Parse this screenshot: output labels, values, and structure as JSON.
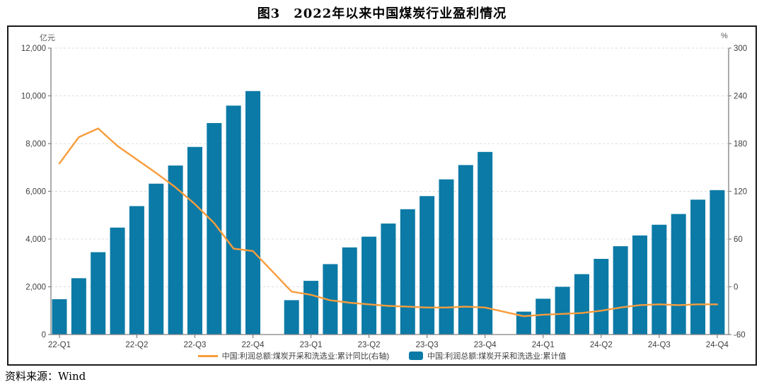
{
  "title": "图3　2022年以来中国煤炭行业盈利情况",
  "source": "资料来源：Wind",
  "chart_data": {
    "type": "bar+line",
    "title": "图3 2022年以来中国煤炭行业盈利情况",
    "categories": [
      "2022-02",
      "2022-03",
      "2022-04",
      "2022-05",
      "2022-06",
      "2022-07",
      "2022-08",
      "2022-09",
      "2022-10",
      "2022-11",
      "2022-12",
      "2023-02",
      "2023-03",
      "2023-04",
      "2023-05",
      "2023-06",
      "2023-07",
      "2023-08",
      "2023-09",
      "2023-10",
      "2023-11",
      "2023-12",
      "2024-02",
      "2024-03",
      "2024-04",
      "2024-05",
      "2024-06",
      "2024-07",
      "2024-08",
      "2024-09",
      "2024-10",
      "2024-11",
      "2024-12"
    ],
    "month_slots": [
      0,
      1,
      2,
      3,
      4,
      5,
      6,
      7,
      8,
      9,
      10,
      12,
      13,
      14,
      15,
      16,
      17,
      18,
      19,
      20,
      21,
      22,
      24,
      25,
      26,
      27,
      28,
      29,
      30,
      31,
      32,
      33,
      34
    ],
    "series": [
      {
        "name": "中国:利润总额:煤炭开采和洗选业:累计值",
        "type": "bar",
        "axis": "left",
        "color": "#0b7aa6",
        "values": [
          1480,
          2360,
          3450,
          4480,
          5380,
          6320,
          7080,
          7860,
          8860,
          9590,
          10200,
          1440,
          2250,
          2950,
          3650,
          4100,
          4650,
          5250,
          5800,
          6500,
          7100,
          7650,
          960,
          1500,
          2000,
          2530,
          3170,
          3700,
          4150,
          4600,
          5050,
          5650,
          6050
        ]
      },
      {
        "name": "中国:利润总额:煤炭开采和洗选业:累计同比(右轴)",
        "type": "line",
        "axis": "right",
        "color": "#f89c3c",
        "values": [
          155,
          188,
          199,
          177,
          160,
          143,
          125,
          104,
          80,
          48,
          45,
          -6,
          -10,
          -17,
          -20,
          -22,
          -24,
          -25,
          -26,
          -26,
          -25,
          -26,
          -37,
          -35,
          -34,
          -33,
          -30,
          -26,
          -23,
          -22,
          -23,
          -22,
          -22
        ]
      }
    ],
    "left_axis": {
      "unit": "亿元",
      "min": 0,
      "max": 12000,
      "tick_values": [
        12000,
        10000,
        8000,
        6000,
        4000,
        2000,
        0
      ],
      "tick_labels": [
        "12,000",
        "10,000",
        "8,000",
        "6,000",
        "4,000",
        "2,000",
        "0"
      ]
    },
    "right_axis": {
      "unit": "%",
      "min": -60,
      "max": 300,
      "tick_values": [
        300,
        240,
        180,
        120,
        60,
        0,
        -60
      ],
      "tick_labels": [
        "300",
        "240",
        "180",
        "120",
        "60",
        "0",
        "-60"
      ]
    },
    "x_axis": {
      "ticks": [
        {
          "label": "22-Q1",
          "slot": 0
        },
        {
          "label": "22-Q2",
          "slot": 4
        },
        {
          "label": "22-Q3",
          "slot": 7
        },
        {
          "label": "22-Q4",
          "slot": 10
        },
        {
          "label": "23-Q1",
          "slot": 13
        },
        {
          "label": "23-Q2",
          "slot": 16
        },
        {
          "label": "23-Q3",
          "slot": 19
        },
        {
          "label": "23-Q4",
          "slot": 22
        },
        {
          "label": "24-Q1",
          "slot": 25
        },
        {
          "label": "24-Q2",
          "slot": 28
        },
        {
          "label": "24-Q3",
          "slot": 31
        },
        {
          "label": "24-Q4",
          "slot": 34
        }
      ]
    },
    "grid": "horizontal-dashed",
    "legend_position": "bottom",
    "axis_color": "#808080",
    "grid_color": "#dcdcdc",
    "label_color": "#3f3f3f"
  }
}
